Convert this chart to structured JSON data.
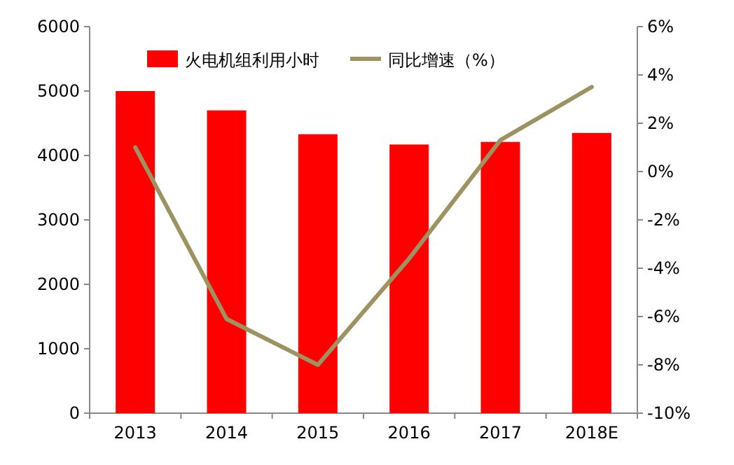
{
  "chart_data": {
    "type": "bar",
    "categories": [
      "2013",
      "2014",
      "2015",
      "2016",
      "2017",
      "2018E"
    ],
    "series": [
      {
        "name": "火电机组利用小时",
        "color": "#ff0000",
        "values": [
          5000,
          4700,
          4330,
          4170,
          4210,
          4350
        ]
      },
      {
        "name": "同比增速（%）",
        "type": "line",
        "axis": "y2",
        "color": "#9c9361",
        "values": [
          1.0,
          -6.1,
          -8.0,
          -3.6,
          1.3,
          3.5
        ]
      }
    ],
    "ylim": [
      0,
      6000
    ],
    "yticks": [
      0,
      1000,
      2000,
      3000,
      4000,
      5000,
      6000
    ],
    "y2lim": [
      -10,
      6
    ],
    "y2ticks": [
      {
        "value": -10,
        "label": "-10%"
      },
      {
        "value": -8,
        "label": "-8%"
      },
      {
        "value": -6,
        "label": "-6%"
      },
      {
        "value": -4,
        "label": "-4%"
      },
      {
        "value": -2,
        "label": "-2%"
      },
      {
        "value": 0,
        "label": "0%"
      },
      {
        "value": 2,
        "label": "2%"
      },
      {
        "value": 4,
        "label": "4%"
      },
      {
        "value": 6,
        "label": "6%"
      }
    ],
    "legend": "top",
    "grid": false
  }
}
